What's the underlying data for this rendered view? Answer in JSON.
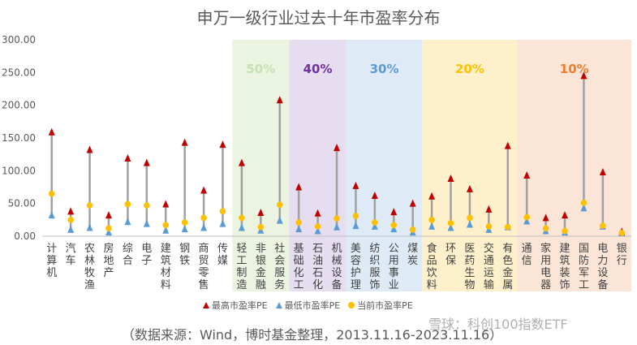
{
  "title": "申万一级行业过去十年市盈率分布",
  "source": "（数据来源：Wind，博时基金整理，2013.11.16-2023.11.16）",
  "watermark": "雪球：科创100指数ETF",
  "colors": {
    "max": "#C00000",
    "min": "#5B9BD5",
    "current": "#FFC000",
    "line": "#A0A0A0"
  },
  "chart_data": {
    "type": "scatter",
    "title": "申万一级行业过去十年市盈率分布",
    "ylim": [
      0,
      300
    ],
    "yticks": [
      "0.00",
      "50.00",
      "100.00",
      "150.00",
      "200.00",
      "250.00",
      "300.00"
    ],
    "categories": [
      "计算机",
      "汽车",
      "农林牧渔",
      "房地产",
      "综合",
      "电子",
      "建筑材料",
      "钢铁",
      "商贸零售",
      "传媒",
      "轻工制造",
      "非银金融",
      "社会服务",
      "基础化工",
      "石油石化",
      "机械设备",
      "美容护理",
      "纺织服饰",
      "公用事业",
      "煤炭",
      "食品饮料",
      "环保",
      "医药生物",
      "交通运输",
      "有色金属",
      "通信",
      "家用电器",
      "建筑装饰",
      "国防军工",
      "电力设备",
      "银行"
    ],
    "series": [
      {
        "name": "最高市盈率PE",
        "values": [
          159,
          38,
          132,
          32,
          119,
          112,
          49,
          143,
          70,
          140,
          112,
          36,
          208,
          75,
          35,
          135,
          77,
          62,
          37,
          50,
          61,
          88,
          72,
          41,
          138,
          93,
          28,
          32,
          245,
          98,
          7
        ]
      },
      {
        "name": "最低市盈率PE",
        "values": [
          32,
          10,
          13,
          6,
          22,
          19,
          9,
          11,
          13,
          19,
          13,
          9,
          24,
          11,
          8,
          14,
          16,
          15,
          11,
          6,
          15,
          13,
          18,
          10,
          14,
          23,
          8,
          6,
          43,
          15,
          5
        ]
      },
      {
        "name": "当前市盈率PE",
        "values": [
          65,
          25,
          47,
          12,
          49,
          47,
          17,
          21,
          28,
          38,
          28,
          14,
          48,
          21,
          15,
          27,
          31,
          21,
          17,
          10,
          25,
          20,
          28,
          15,
          14,
          29,
          12,
          8,
          51,
          16,
          5
        ]
      }
    ],
    "bands": [
      {
        "label": "50%",
        "start": 10,
        "end": 12,
        "fill": "#EBF3E1",
        "color": "#C6E0B4"
      },
      {
        "label": "40%",
        "start": 13,
        "end": 15,
        "fill": "#E6DDF0",
        "color": "#7030A0"
      },
      {
        "label": "30%",
        "start": 16,
        "end": 19,
        "fill": "#DEEBF7",
        "color": "#5B9BD5"
      },
      {
        "label": "20%",
        "start": 20,
        "end": 24,
        "fill": "#FFF0CC",
        "color": "#FFC000"
      },
      {
        "label": "10%",
        "start": 25,
        "end": 30,
        "fill": "#FBE5D6",
        "color": "#ED7D31"
      }
    ],
    "grid": false,
    "legend_position": "bottom"
  }
}
